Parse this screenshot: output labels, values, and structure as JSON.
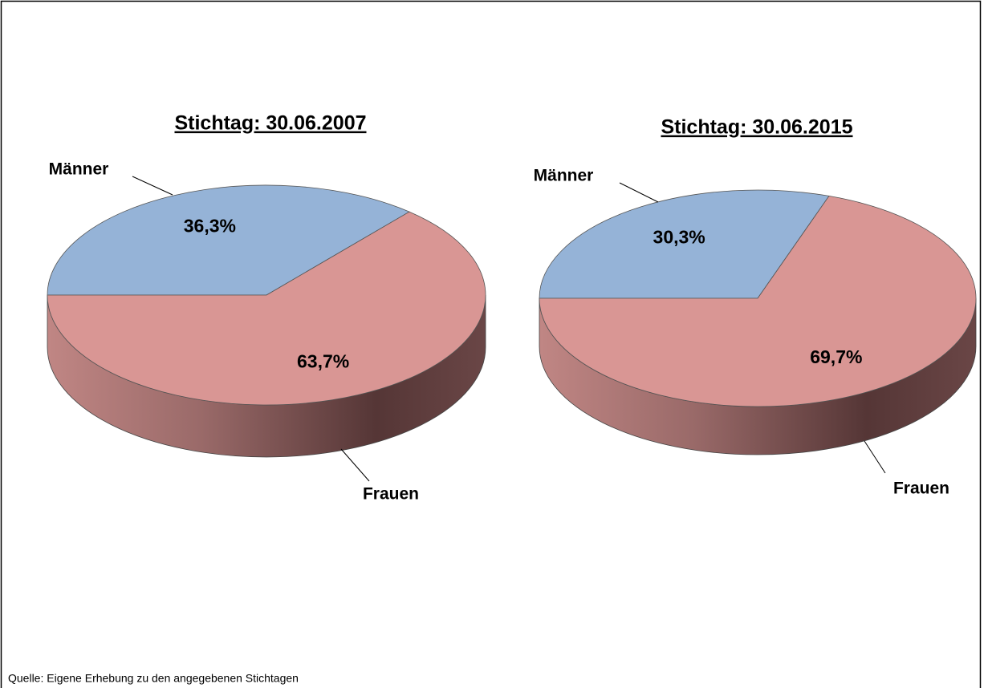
{
  "chart_data": [
    {
      "type": "pie3d",
      "title": "Stichtag: 30.06.2007",
      "categories": [
        "Männer",
        "Frauen"
      ],
      "values": [
        36.3,
        63.7
      ],
      "value_labels": [
        "36,3%",
        "63,7%"
      ],
      "colors": [
        "#95b3d7",
        "#d99694"
      ]
    },
    {
      "type": "pie3d",
      "title": "Stichtag: 30.06.2015",
      "categories": [
        "Männer",
        "Frauen"
      ],
      "values": [
        30.3,
        69.7
      ],
      "value_labels": [
        "30,3%",
        "69,7%"
      ],
      "colors": [
        "#95b3d7",
        "#d99694"
      ]
    }
  ],
  "source": "Quelle: Eigene Erhebung zu den angegebenen Stichtagen"
}
